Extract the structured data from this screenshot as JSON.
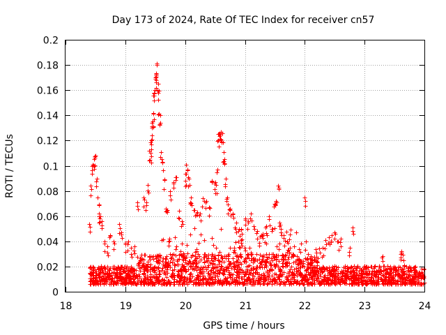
{
  "chart_data": {
    "type": "scatter",
    "title": "Day 173 of 2024, Rate Of TEC Index for receiver cn57",
    "xlabel": "GPS time / hours",
    "ylabel": "ROTI / TECUs",
    "xlim": [
      18,
      24
    ],
    "ylim": [
      0,
      0.2
    ],
    "xticks": [
      18,
      19,
      20,
      21,
      22,
      23,
      24
    ],
    "yticks": [
      0,
      0.02,
      0.04,
      0.06,
      0.08,
      0.1,
      0.12,
      0.14,
      0.16,
      0.18,
      0.2
    ],
    "xtick_labels": [
      "18",
      "19",
      "20",
      "21",
      "22",
      "23",
      "24"
    ],
    "ytick_labels": [
      "0",
      "0.02",
      "0.04",
      "0.06",
      "0.08",
      "0.1",
      "0.12",
      "0.14",
      "0.16",
      "0.18",
      "0.2"
    ],
    "grid": true,
    "marker": "+",
    "color": "#ff0000",
    "series": [
      {
        "name": "ROTI",
        "x": [
          18.4,
          18.42,
          18.44,
          18.46,
          18.48,
          18.5,
          18.52,
          18.54,
          18.56,
          18.58,
          18.6,
          18.65,
          18.7,
          18.75,
          18.8,
          18.9,
          18.93,
          19.0,
          19.05,
          19.1,
          19.15,
          19.2,
          19.3,
          19.35,
          19.38,
          19.4,
          19.42,
          19.43,
          19.44,
          19.45,
          19.46,
          19.47,
          19.48,
          19.49,
          19.5,
          19.51,
          19.52,
          19.53,
          19.54,
          19.55,
          19.56,
          19.58,
          19.6,
          19.62,
          19.65,
          19.68,
          19.7,
          19.75,
          19.8,
          19.85,
          19.9,
          19.95,
          20.0,
          20.02,
          20.04,
          20.06,
          20.08,
          20.1,
          20.15,
          20.2,
          20.25,
          20.3,
          20.35,
          20.4,
          20.45,
          20.5,
          20.52,
          20.54,
          20.55,
          20.56,
          20.58,
          20.6,
          20.62,
          20.64,
          20.66,
          20.68,
          20.7,
          20.72,
          20.75,
          20.8,
          20.85,
          20.9,
          20.95,
          21.0,
          21.05,
          21.1,
          21.15,
          21.2,
          21.25,
          21.3,
          21.35,
          21.4,
          21.45,
          21.5,
          21.52,
          21.55,
          21.58,
          21.6,
          21.65,
          21.7,
          21.75,
          21.8,
          21.9,
          22.0,
          22.05,
          22.1,
          22.2,
          22.3,
          22.35,
          22.4,
          22.45,
          22.5,
          22.55,
          22.6,
          22.75,
          22.8,
          23.3,
          23.6,
          23.62,
          23.65
        ],
        "y": [
          0.054,
          0.084,
          0.1,
          0.101,
          0.105,
          0.108,
          0.09,
          0.075,
          0.062,
          0.06,
          0.056,
          0.04,
          0.036,
          0.045,
          0.04,
          0.054,
          0.047,
          0.039,
          0.04,
          0.035,
          0.036,
          0.071,
          0.075,
          0.071,
          0.085,
          0.112,
          0.11,
          0.12,
          0.124,
          0.134,
          0.135,
          0.142,
          0.158,
          0.16,
          0.169,
          0.172,
          0.173,
          0.181,
          0.16,
          0.165,
          0.141,
          0.14,
          0.111,
          0.103,
          0.089,
          0.066,
          0.065,
          0.08,
          0.087,
          0.091,
          0.064,
          0.056,
          0.088,
          0.101,
          0.097,
          0.09,
          0.071,
          0.075,
          0.065,
          0.063,
          0.062,
          0.074,
          0.072,
          0.067,
          0.088,
          0.087,
          0.085,
          0.097,
          0.12,
          0.125,
          0.126,
          0.127,
          0.126,
          0.111,
          0.105,
          0.09,
          0.075,
          0.069,
          0.066,
          0.062,
          0.055,
          0.05,
          0.046,
          0.058,
          0.056,
          0.062,
          0.052,
          0.048,
          0.044,
          0.046,
          0.052,
          0.06,
          0.05,
          0.07,
          0.072,
          0.084,
          0.055,
          0.05,
          0.045,
          0.04,
          0.035,
          0.03,
          0.026,
          0.075,
          0.03,
          0.028,
          0.031,
          0.035,
          0.041,
          0.043,
          0.045,
          0.047,
          0.04,
          0.042,
          0.035,
          0.051,
          0.028,
          0.03,
          0.032,
          0.025
        ]
      }
    ],
    "baseline_band": {
      "description": "dense cloud of points along the bottom",
      "x_range": [
        18.4,
        24.0
      ],
      "y_typical_range": [
        0.006,
        0.03
      ]
    }
  }
}
